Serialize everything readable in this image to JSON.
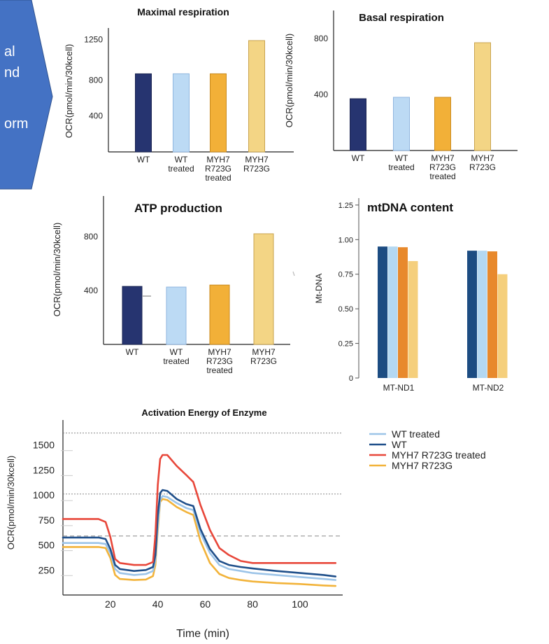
{
  "callout": {
    "lines": [
      "al",
      "nd",
      "",
      "orm"
    ],
    "color": "#4472c4"
  },
  "colors": {
    "wt": "#263470",
    "wt_treated": "#bcdaf4",
    "myh7_treated": "#f2b038",
    "myh7": "#f3d585",
    "mt_wt": "#1c4c82",
    "mt_wt_treated": "#b4d8f2",
    "mt_myh7_treated": "#e8892c",
    "mt_myh7": "#f5cf7c",
    "line_wt_treated": "#9cc4e8",
    "line_wt": "#1f4f8a",
    "line_myh7_treated": "#e8473a",
    "line_myh7": "#f2b33a"
  },
  "chart_data": [
    {
      "id": "maximal",
      "type": "bar",
      "title": "Maximal respiration",
      "ylabel": "OCR(pmol/min/30kcell)",
      "categories": [
        [
          "WT"
        ],
        [
          "WT",
          "treated"
        ],
        [
          "MYH7",
          "R723G",
          "treated"
        ],
        [
          "MYH7",
          "R723G"
        ]
      ],
      "values": [
        870,
        870,
        870,
        1240
      ],
      "yticks": [
        400,
        800,
        1250
      ],
      "ylim": [
        0,
        1380
      ]
    },
    {
      "id": "basal",
      "type": "bar",
      "title": "Basal respiration",
      "ylabel": "OCR(pmol/min/30kcell)",
      "categories": [
        [
          "WT"
        ],
        [
          "WT",
          "treated"
        ],
        [
          "MYH7",
          "R723G",
          "treated"
        ],
        [
          "MYH7",
          "R723G"
        ]
      ],
      "values": [
        370,
        380,
        380,
        770
      ],
      "yticks": [
        400,
        800
      ],
      "ylim": [
        0,
        1000
      ]
    },
    {
      "id": "atp",
      "type": "bar",
      "title": "ATP production",
      "ylabel": "OCR(pmol/min/30kcell)",
      "categories": [
        [
          "WT"
        ],
        [
          "WT",
          "treated"
        ],
        [
          "MYH7",
          "R723G",
          "treated"
        ],
        [
          "MYH7",
          "R723G"
        ]
      ],
      "values": [
        430,
        425,
        440,
        820
      ],
      "yticks": [
        400,
        800
      ],
      "ylim": [
        0,
        1100
      ]
    },
    {
      "id": "mtdna",
      "type": "bar",
      "title": "mtDNA content",
      "ylabel": "Mt-DNA",
      "categories": [
        "MT-ND1",
        "MT-ND2"
      ],
      "series": [
        {
          "values": [
            0.95,
            0.92
          ]
        },
        {
          "values": [
            0.95,
            0.92
          ]
        },
        {
          "values": [
            0.945,
            0.915
          ]
        },
        {
          "values": [
            0.845,
            0.75
          ]
        }
      ],
      "yticks": [
        "0",
        "0.25",
        "0.50",
        "0.75",
        "1.00",
        "1.25"
      ],
      "ylim": [
        0,
        1.3
      ]
    },
    {
      "id": "timecourse",
      "type": "line",
      "title": "Activation Energy of Enzyme",
      "xlabel": "Time (min)",
      "ylabel": "OCR(pmol/min/30kcell)",
      "xticks": [
        20,
        40,
        60,
        80,
        100
      ],
      "yticks": [
        250,
        500,
        750,
        1000,
        1250,
        1500
      ],
      "xlim": [
        0,
        118
      ],
      "ylim": [
        0,
        1750
      ],
      "ref_lines": [
        1620,
        1010,
        590
      ],
      "legend_position": "right",
      "series": [
        {
          "name": "WT treated",
          "x": [
            0,
            15,
            18,
            20,
            22,
            24,
            30,
            35,
            38,
            39,
            40,
            41,
            42,
            44,
            48,
            52,
            55,
            58,
            62,
            66,
            70,
            75,
            80,
            90,
            100,
            110,
            115
          ],
          "y": [
            520,
            520,
            510,
            420,
            260,
            220,
            200,
            210,
            240,
            350,
            700,
            950,
            990,
            980,
            920,
            870,
            850,
            620,
            420,
            300,
            260,
            240,
            220,
            200,
            180,
            160,
            150
          ]
        },
        {
          "name": "WT",
          "x": [
            0,
            15,
            18,
            20,
            22,
            24,
            30,
            35,
            38,
            39,
            40,
            41,
            42,
            44,
            48,
            52,
            55,
            58,
            62,
            66,
            70,
            75,
            80,
            90,
            100,
            110,
            115
          ],
          "y": [
            575,
            575,
            560,
            460,
            300,
            260,
            240,
            250,
            280,
            400,
            800,
            1020,
            1050,
            1040,
            960,
            910,
            890,
            660,
            460,
            340,
            300,
            280,
            265,
            240,
            220,
            200,
            185
          ]
        },
        {
          "name": "MYH7 R723G treated",
          "x": [
            0,
            15,
            18,
            20,
            22,
            24,
            30,
            35,
            38,
            39,
            40,
            41,
            42,
            44,
            48,
            52,
            55,
            58,
            62,
            66,
            70,
            75,
            80,
            90,
            100,
            110,
            115
          ],
          "y": [
            760,
            760,
            730,
            580,
            360,
            320,
            300,
            300,
            330,
            600,
            1100,
            1360,
            1400,
            1400,
            1290,
            1200,
            1130,
            900,
            650,
            470,
            400,
            340,
            320,
            320,
            320,
            320,
            320
          ]
        },
        {
          "name": "MYH7 R723G",
          "x": [
            0,
            15,
            18,
            20,
            22,
            24,
            30,
            35,
            38,
            39,
            40,
            41,
            42,
            44,
            48,
            52,
            55,
            58,
            62,
            66,
            70,
            75,
            80,
            90,
            100,
            110,
            115
          ],
          "y": [
            480,
            480,
            470,
            370,
            200,
            160,
            150,
            155,
            190,
            300,
            650,
            930,
            960,
            950,
            880,
            830,
            800,
            540,
            320,
            210,
            170,
            150,
            135,
            120,
            110,
            95,
            90
          ]
        }
      ]
    }
  ]
}
